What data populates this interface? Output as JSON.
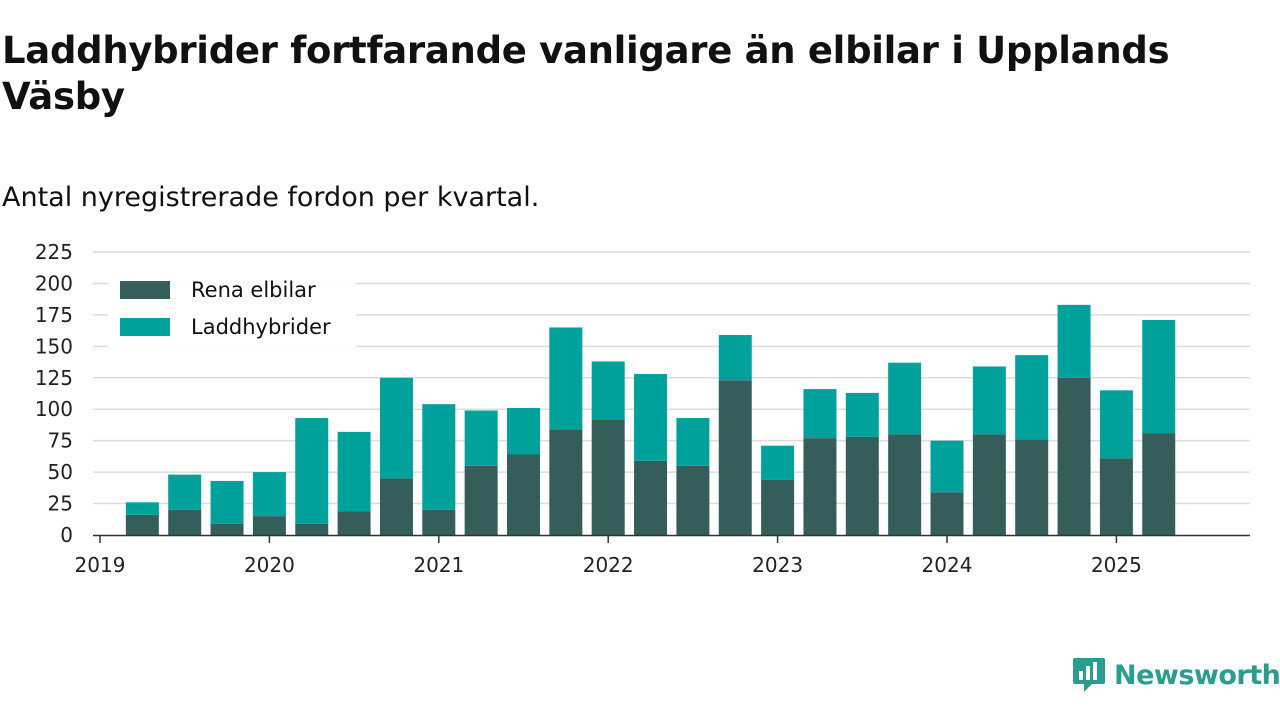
{
  "title": "Laddhybrider fortfarande vanligare än elbilar i Upplands Väsby",
  "subtitle": "Antal nyregistrerade fordon per kvartal.",
  "brand": "Newsworthy",
  "chart_data": {
    "type": "bar",
    "stacked": true,
    "categories": [
      "2019 Q2",
      "2019 Q3",
      "2019 Q4",
      "2020 Q1",
      "2020 Q2",
      "2020 Q3",
      "2020 Q4",
      "2021 Q1",
      "2021 Q2",
      "2021 Q3",
      "2021 Q4",
      "2022 Q1",
      "2022 Q2",
      "2022 Q3",
      "2022 Q4",
      "2023 Q1",
      "2023 Q2",
      "2023 Q3",
      "2023 Q4",
      "2024 Q1",
      "2024 Q2",
      "2024 Q3",
      "2024 Q4",
      "2025 Q1",
      "2025 Q2"
    ],
    "series": [
      {
        "name": "Rena elbilar",
        "color": "#355e5a",
        "values": [
          16,
          20,
          9,
          15,
          9,
          19,
          45,
          20,
          55,
          64,
          84,
          92,
          59,
          55,
          123,
          44,
          77,
          78,
          80,
          34,
          80,
          76,
          125,
          61,
          81
        ]
      },
      {
        "name": "Laddhybrider",
        "color": "#00a19a",
        "values": [
          10,
          28,
          34,
          35,
          84,
          63,
          80,
          84,
          44,
          37,
          81,
          46,
          69,
          38,
          36,
          27,
          39,
          35,
          57,
          41,
          54,
          67,
          58,
          54,
          90
        ]
      }
    ],
    "x_tick_labels": [
      "2019",
      "2020",
      "2021",
      "2022",
      "2023",
      "2024",
      "2025"
    ],
    "y_ticks": [
      0,
      25,
      50,
      75,
      100,
      125,
      150,
      175,
      200,
      225
    ],
    "ylim": [
      0,
      225
    ],
    "grid": true,
    "legend_position": "top-left"
  }
}
